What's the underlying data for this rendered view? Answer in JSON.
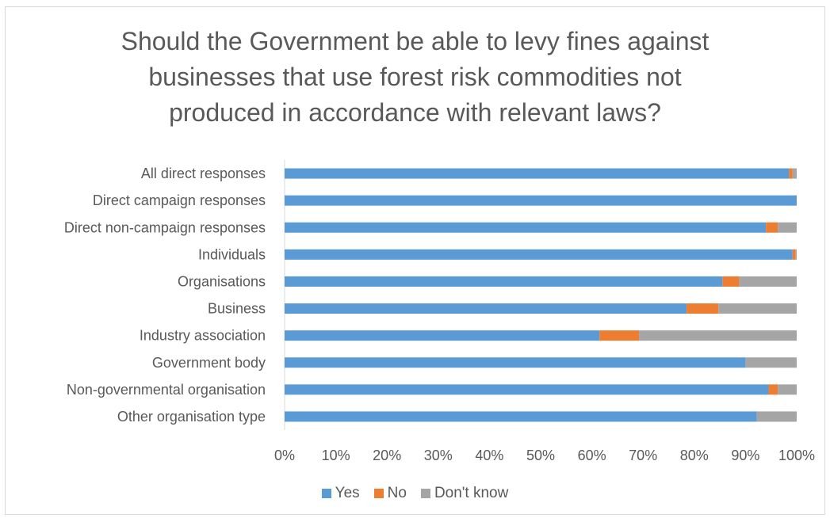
{
  "chart_data": {
    "type": "bar",
    "orientation": "horizontal",
    "stacked": "100%",
    "title": "Should the Government be able to levy fines against businesses that use forest risk commodities not produced in accordance with relevant laws?",
    "title_lines": [
      "Should the Government be able to levy fines against",
      "businesses that use forest risk commodities not",
      "produced in accordance with relevant laws?"
    ],
    "categories": [
      "All direct responses",
      "Direct campaign responses",
      "Direct non-campaign responses",
      "Individuals",
      "Organisations",
      "Business",
      "Industry association",
      "Government body",
      "Non-governmental organisation",
      "Other organisation type"
    ],
    "series": [
      {
        "name": "Yes",
        "color": "#5b9bd5",
        "values": [
          98.5,
          100,
          94,
          99.2,
          85.5,
          78.5,
          61.5,
          90,
          94.5,
          92.2
        ]
      },
      {
        "name": "No",
        "color": "#ed7d31",
        "values": [
          0.7,
          0,
          2.3,
          0.6,
          3.3,
          6.2,
          7.7,
          0,
          1.8,
          0
        ]
      },
      {
        "name": "Don't know",
        "color": "#a5a5a5",
        "values": [
          0.8,
          0,
          3.7,
          0.2,
          11.2,
          15.3,
          30.8,
          10,
          3.7,
          7.8
        ]
      }
    ],
    "xlim": [
      0,
      100
    ],
    "x_ticks": [
      "0%",
      "10%",
      "20%",
      "30%",
      "40%",
      "50%",
      "60%",
      "70%",
      "80%",
      "90%",
      "100%"
    ],
    "grid": false,
    "legend_position": "bottom"
  }
}
